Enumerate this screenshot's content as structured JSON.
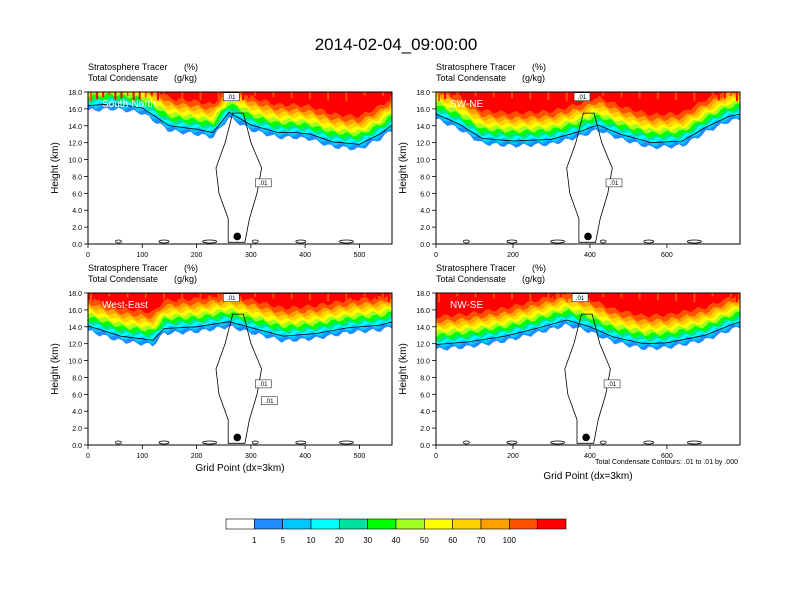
{
  "title": "2014-02-04_09:00:00",
  "colors": {
    "levels": [
      "#ffffff",
      "#1e8cff",
      "#00c8ff",
      "#00ffff",
      "#00e0a0",
      "#00ff00",
      "#a0ff20",
      "#ffff00",
      "#ffd200",
      "#ffa000",
      "#ff5000",
      "#ff0000"
    ],
    "contour": "#000000"
  },
  "colorbar": {
    "labels": [
      "1",
      "5",
      "10",
      "20",
      "30",
      "40",
      "50",
      "60",
      "70",
      "100"
    ]
  },
  "contour_note": "Total Condensate Contours: .01 to .01 by .000",
  "chart_data": [
    {
      "type": "heatmap",
      "panel": "South-North",
      "title_left": "Stratosphere Tracer",
      "title_left_units": "(%)",
      "subtitle_left": "Total Condensate",
      "subtitle_left_units": "(g/kg)",
      "label": "South-North",
      "ylabel": "Height (km)",
      "xlabel": "",
      "xlim": [
        0,
        560
      ],
      "ylim": [
        0,
        18
      ],
      "xticks": [
        0,
        100,
        200,
        300,
        400,
        500
      ],
      "yticks": [
        "0.0",
        "2.0",
        "4.0",
        "6.0",
        "8.0",
        "10.0",
        "12.0",
        "14.0",
        "16.0",
        "18.0"
      ],
      "contour_labels": [
        ".01",
        ".01"
      ],
      "marker_x": 275,
      "tracer_bottom_km": [
        [
          0,
          15.8
        ],
        [
          50,
          16.0
        ],
        [
          100,
          15.5
        ],
        [
          150,
          13.4
        ],
        [
          200,
          13.0
        ],
        [
          230,
          12.6
        ],
        [
          260,
          15.0
        ],
        [
          300,
          13.5
        ],
        [
          350,
          12.6
        ],
        [
          380,
          12.6
        ],
        [
          410,
          12.4
        ],
        [
          450,
          11.5
        ],
        [
          500,
          11.2
        ],
        [
          540,
          12.5
        ],
        [
          560,
          13.5
        ]
      ]
    },
    {
      "type": "heatmap",
      "panel": "SW-NE",
      "title_left": "Stratosphere Tracer",
      "title_left_units": "(%)",
      "subtitle_left": "Total Condensate",
      "subtitle_left_units": "(g/kg)",
      "label": "SW-NE",
      "ylabel": "Height (km)",
      "xlabel": "",
      "xlim": [
        0,
        790
      ],
      "ylim": [
        0,
        18
      ],
      "xticks": [
        0,
        200,
        400,
        600
      ],
      "yticks": [
        "0.0",
        "2.0",
        "4.0",
        "6.0",
        "8.0",
        "10.0",
        "12.0",
        "14.0",
        "16.0",
        "18.0"
      ],
      "contour_labels": [
        ".01",
        ".01"
      ],
      "marker_x": 395,
      "tracer_bottom_km": [
        [
          0,
          14.8
        ],
        [
          60,
          13.6
        ],
        [
          120,
          11.9
        ],
        [
          200,
          11.6
        ],
        [
          300,
          11.8
        ],
        [
          380,
          12.8
        ],
        [
          420,
          13.5
        ],
        [
          480,
          12.4
        ],
        [
          560,
          11.4
        ],
        [
          640,
          11.6
        ],
        [
          700,
          13.2
        ],
        [
          760,
          14.5
        ],
        [
          790,
          14.8
        ]
      ]
    },
    {
      "type": "heatmap",
      "panel": "West-East",
      "title_left": "Stratosphere Tracer",
      "title_left_units": "(%)",
      "subtitle_left": "Total Condensate",
      "subtitle_left_units": "(g/kg)",
      "label": "West-East",
      "ylabel": "Height (km)",
      "xlabel": "Grid Point (dx=3km)",
      "xlim": [
        0,
        560
      ],
      "ylim": [
        0,
        18
      ],
      "xticks": [
        0,
        100,
        200,
        300,
        400,
        500
      ],
      "yticks": [
        "0.0",
        "2.0",
        "4.0",
        "6.0",
        "8.0",
        "10.0",
        "12.0",
        "14.0",
        "16.0",
        "18.0"
      ],
      "contour_labels": [
        ".01",
        ".01",
        ".01"
      ],
      "marker_x": 275,
      "tracer_bottom_km": [
        [
          0,
          13.5
        ],
        [
          60,
          12.3
        ],
        [
          120,
          11.8
        ],
        [
          140,
          13.2
        ],
        [
          200,
          13.4
        ],
        [
          260,
          14.0
        ],
        [
          300,
          13.3
        ],
        [
          360,
          12.3
        ],
        [
          420,
          12.6
        ],
        [
          480,
          13.3
        ],
        [
          540,
          13.6
        ],
        [
          560,
          14.0
        ]
      ]
    },
    {
      "type": "heatmap",
      "panel": "NW-SE",
      "title_left": "Stratosphere Tracer",
      "title_left_units": "(%)",
      "subtitle_left": "Total Condensate",
      "subtitle_left_units": "(g/kg)",
      "label": "NW-SE",
      "ylabel": "Height (km)",
      "xlabel": "Grid Point (dx=3km)",
      "xlim": [
        0,
        790
      ],
      "ylim": [
        0,
        18
      ],
      "xticks": [
        0,
        200,
        400,
        600
      ],
      "yticks": [
        "0.0",
        "2.0",
        "4.0",
        "6.0",
        "8.0",
        "10.0",
        "12.0",
        "14.0",
        "16.0",
        "18.0"
      ],
      "contour_labels": [
        ".01",
        ".01"
      ],
      "marker_x": 390,
      "tracer_bottom_km": [
        [
          0,
          11.3
        ],
        [
          80,
          11.6
        ],
        [
          180,
          12.3
        ],
        [
          260,
          13.2
        ],
        [
          340,
          14.2
        ],
        [
          400,
          13.4
        ],
        [
          460,
          12.2
        ],
        [
          540,
          11.4
        ],
        [
          600,
          11.5
        ],
        [
          700,
          12.4
        ],
        [
          760,
          13.5
        ],
        [
          790,
          14.0
        ]
      ]
    }
  ]
}
